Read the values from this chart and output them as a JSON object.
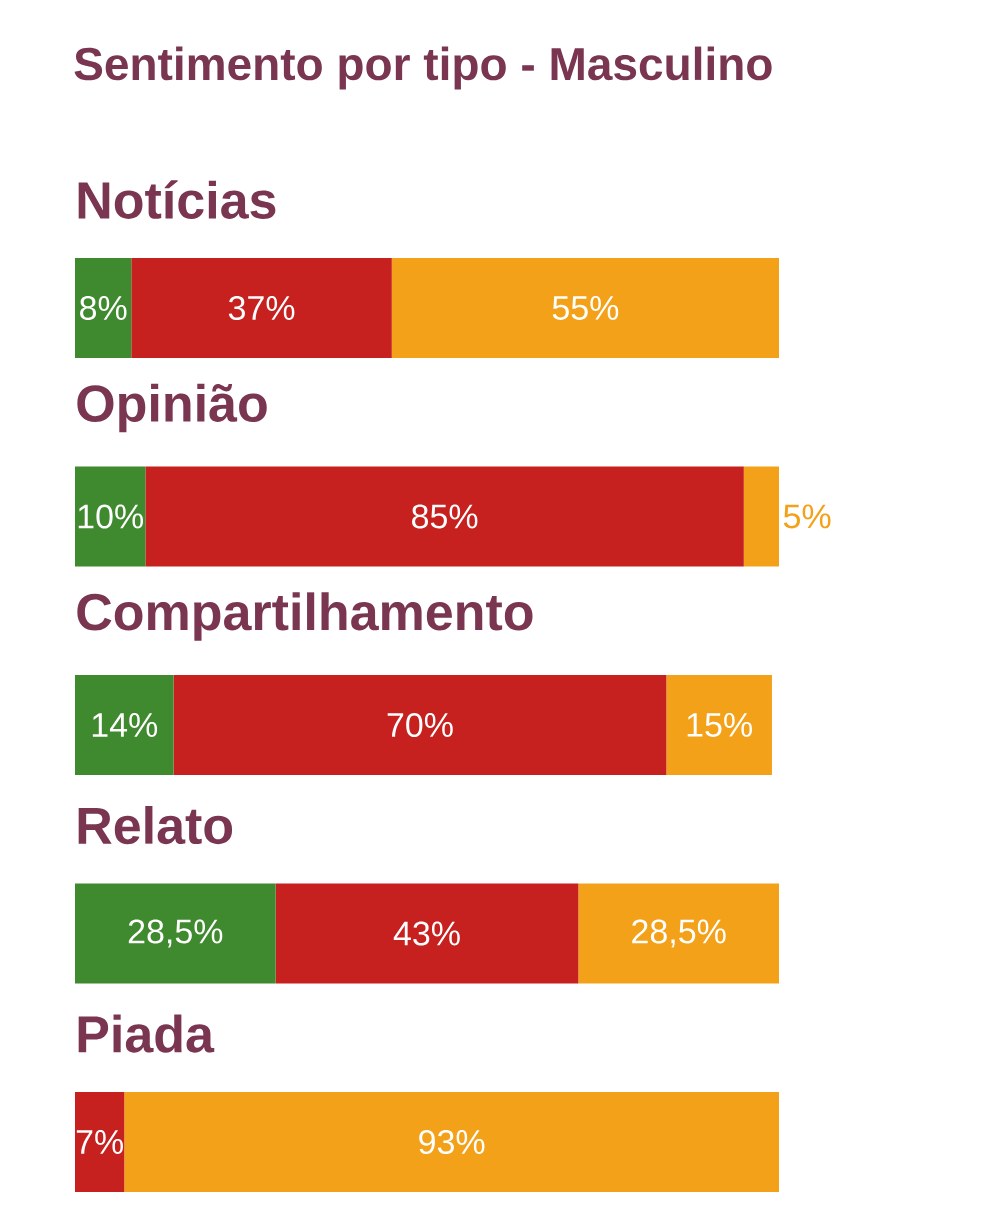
{
  "chart_data": {
    "type": "bar",
    "orientation": "horizontal",
    "stacked": true,
    "title": "Sentimento por tipo - Masculino",
    "categories": [
      "Notícias",
      "Opinião",
      "Compartilhamento",
      "Relato",
      "Piada"
    ],
    "xlim": [
      0,
      100
    ],
    "tick_labels": false,
    "series": [
      {
        "color": "#3f8a2e",
        "values": [
          8,
          10,
          14,
          28.5,
          null
        ],
        "value_labels": [
          "8%",
          "10%",
          "14%",
          "28,5%",
          null
        ]
      },
      {
        "color": "#c6201f",
        "values": [
          37,
          85,
          70,
          43,
          7
        ],
        "value_labels": [
          "37%",
          "85%",
          "70%",
          "43%",
          "7%"
        ]
      },
      {
        "color": "#f4a11a",
        "values": [
          55,
          5,
          15,
          28.5,
          93
        ],
        "value_labels": [
          "55%",
          "5%",
          "15%",
          "28,5%",
          "93%"
        ]
      }
    ]
  }
}
